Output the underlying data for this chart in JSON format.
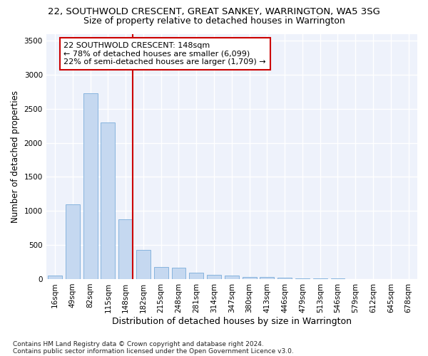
{
  "title1": "22, SOUTHWOLD CRESCENT, GREAT SANKEY, WARRINGTON, WA5 3SG",
  "title2": "Size of property relative to detached houses in Warrington",
  "xlabel": "Distribution of detached houses by size in Warrington",
  "ylabel": "Number of detached properties",
  "footer1": "Contains HM Land Registry data © Crown copyright and database right 2024.",
  "footer2": "Contains public sector information licensed under the Open Government Licence v3.0.",
  "annotation_title": "22 SOUTHWOLD CRESCENT: 148sqm",
  "annotation_line1": "← 78% of detached houses are smaller (6,099)",
  "annotation_line2": "22% of semi-detached houses are larger (1,709) →",
  "bar_categories": [
    "16sqm",
    "49sqm",
    "82sqm",
    "115sqm",
    "148sqm",
    "182sqm",
    "215sqm",
    "248sqm",
    "281sqm",
    "314sqm",
    "347sqm",
    "380sqm",
    "413sqm",
    "446sqm",
    "479sqm",
    "513sqm",
    "546sqm",
    "579sqm",
    "612sqm",
    "645sqm",
    "678sqm"
  ],
  "bar_values": [
    55,
    1100,
    2730,
    2300,
    880,
    430,
    175,
    165,
    95,
    60,
    55,
    30,
    30,
    20,
    10,
    5,
    5,
    3,
    2,
    1,
    1
  ],
  "bar_color": "#c5d8f0",
  "bar_edge_color": "#7aacda",
  "vline_color": "#cc0000",
  "vline_x_index": 4,
  "ylim": [
    0,
    3600
  ],
  "yticks": [
    0,
    500,
    1000,
    1500,
    2000,
    2500,
    3000,
    3500
  ],
  "annotation_box_color": "#cc0000",
  "background_color": "#eef2fb",
  "grid_color": "#ffffff",
  "title1_fontsize": 9.5,
  "title2_fontsize": 9,
  "xlabel_fontsize": 9,
  "ylabel_fontsize": 8.5,
  "tick_fontsize": 7.5,
  "annotation_fontsize": 8,
  "footer_fontsize": 6.5
}
